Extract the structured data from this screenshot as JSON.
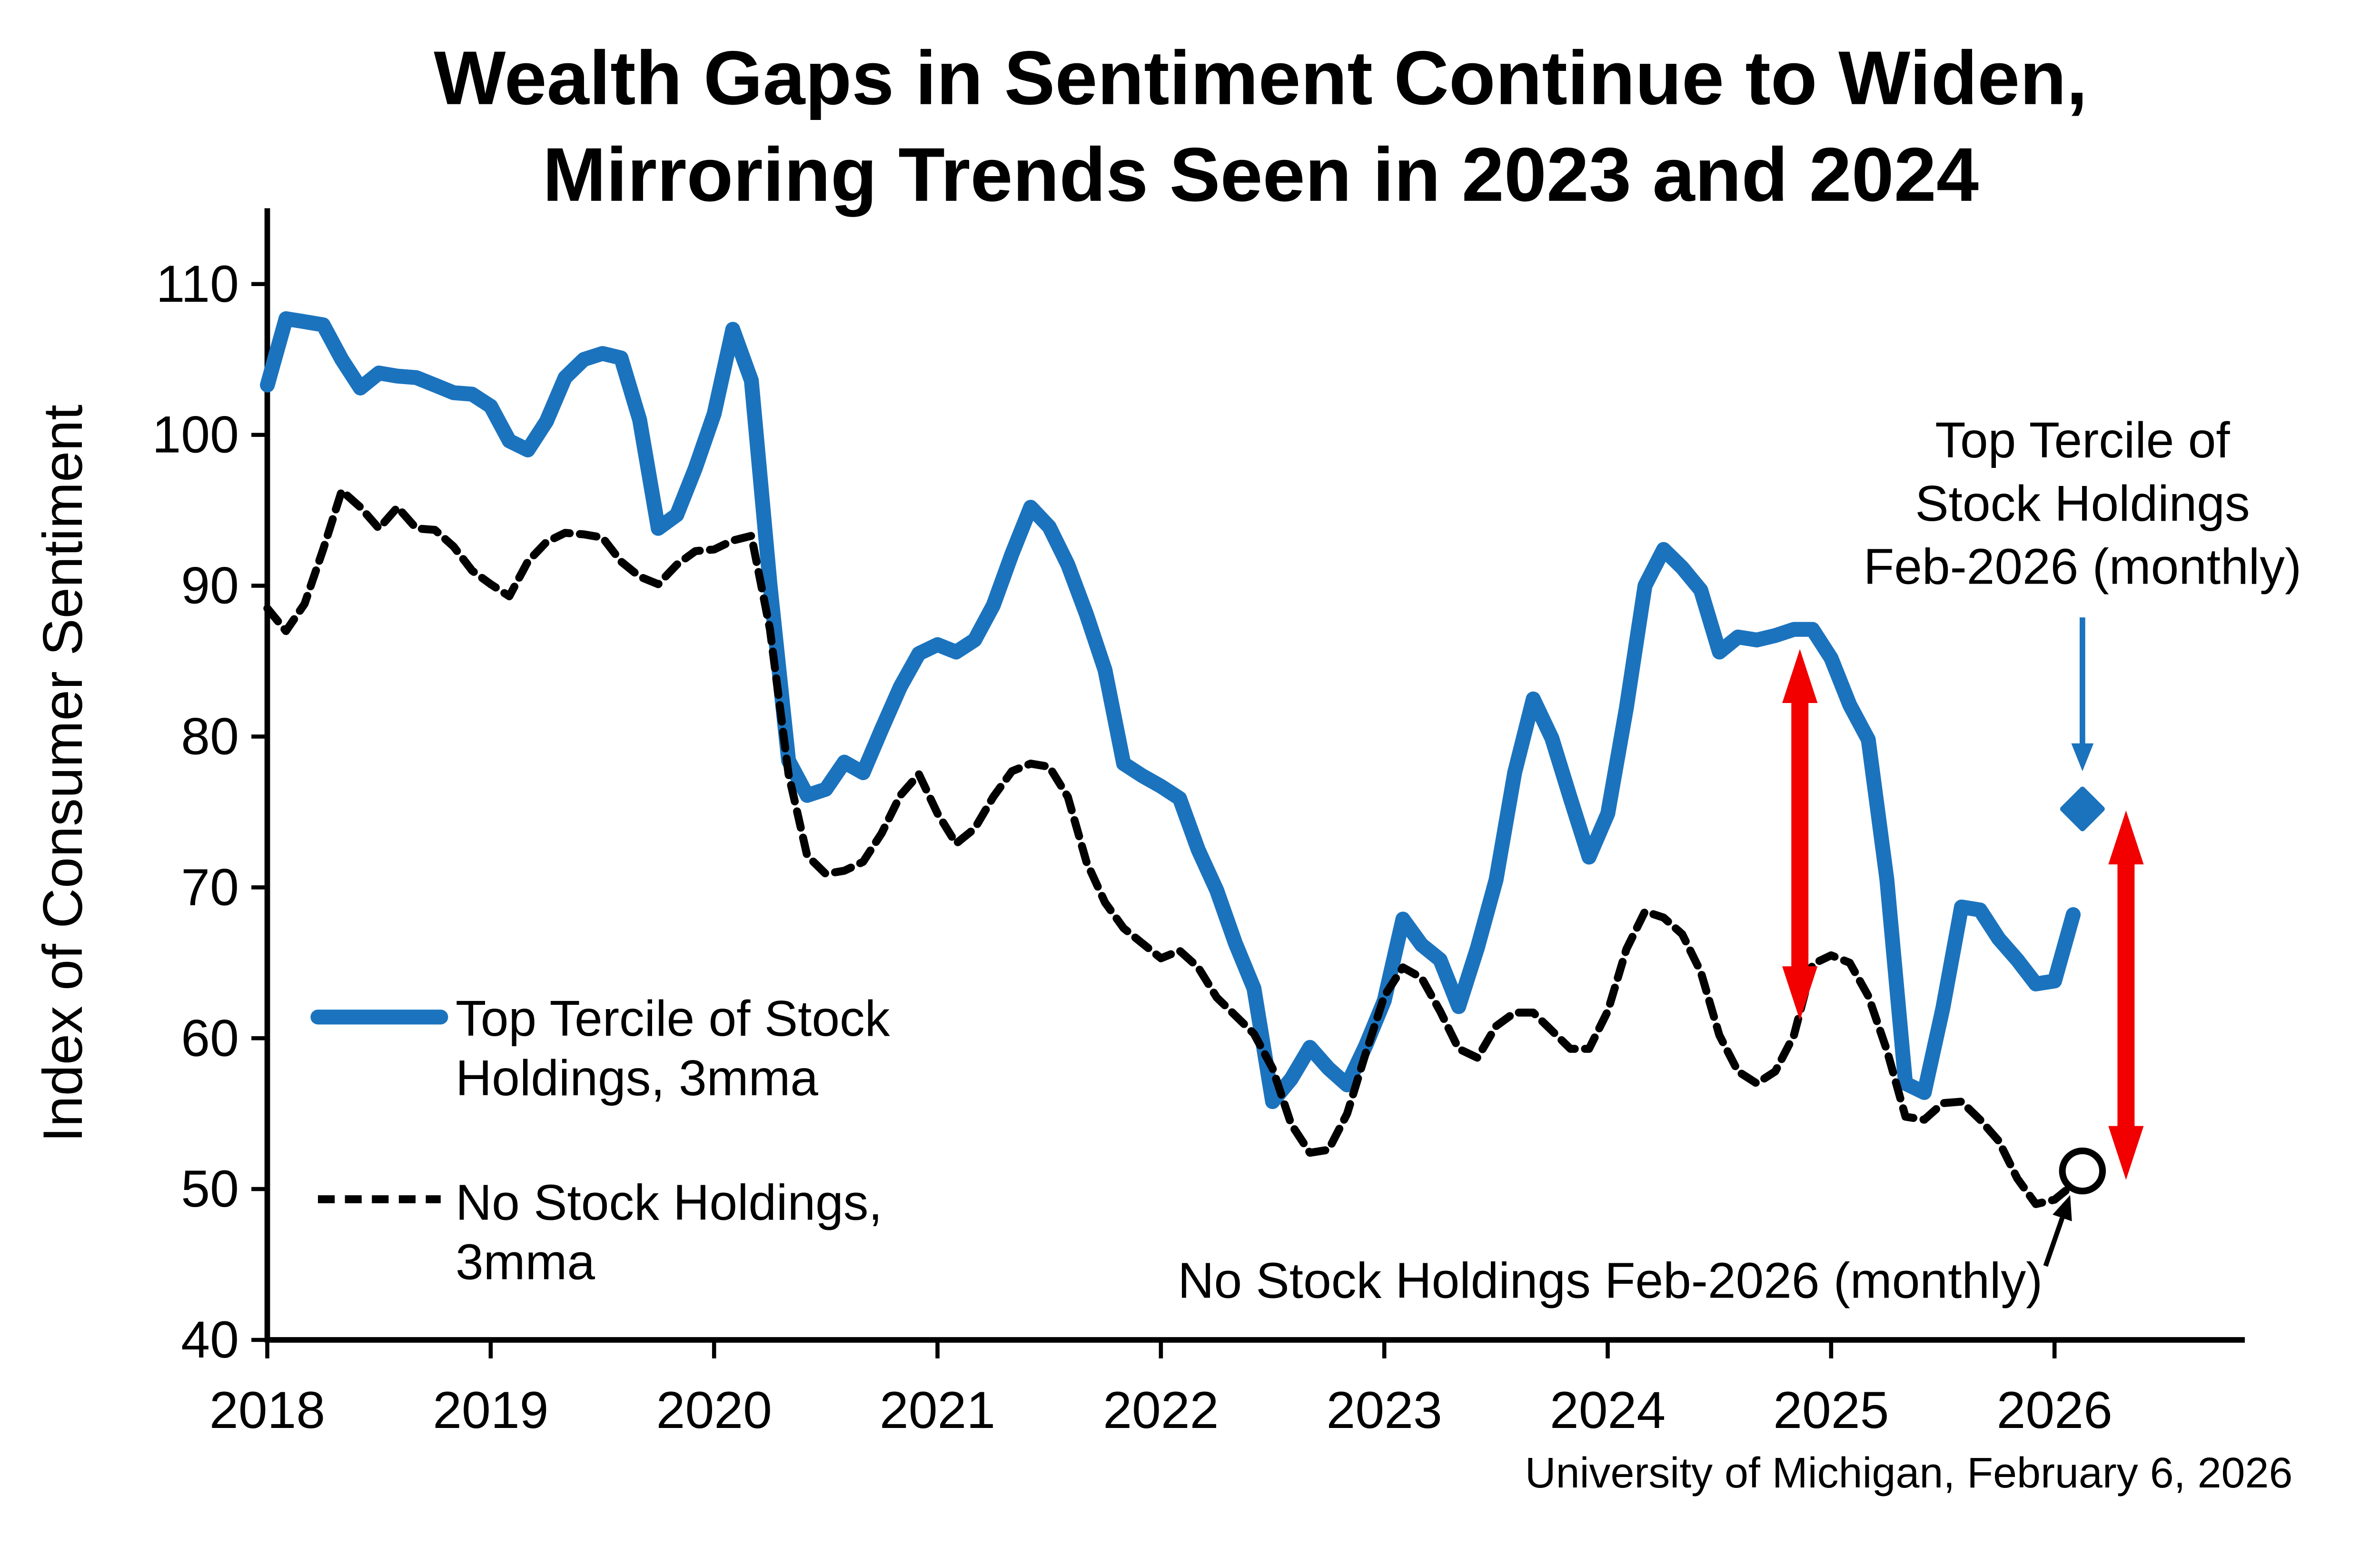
{
  "title": {
    "line1": "Wealth Gaps in Sentiment Continue to Widen,",
    "line2": "Mirroring Trends Seen in 2023 and 2024"
  },
  "y_axis": {
    "label": "Index of Consumer Sentiment",
    "ticks": [
      110,
      100,
      90,
      80,
      70,
      60,
      50,
      40
    ],
    "range": [
      40,
      110
    ]
  },
  "x_axis": {
    "tick_labels": [
      "2018",
      "2019",
      "2020",
      "2021",
      "2022",
      "2023",
      "2024",
      "2025",
      "2026"
    ]
  },
  "legend": {
    "items": [
      {
        "label_line1": "Top Tercile of Stock",
        "label_line2": "Holdings, 3mma",
        "style": "solid",
        "color": "#1b73be"
      },
      {
        "label_line1": "No Stock Holdings,",
        "label_line2": "3mma",
        "style": "dashed",
        "color": "#000000"
      }
    ]
  },
  "annotations": {
    "top_tercile_monthly": {
      "line1": "Top Tercile of",
      "line2": "Stock Holdings",
      "line3": "Feb-2026 (monthly)",
      "marker": "blue-diamond",
      "x": 2026.125,
      "value": 75.2
    },
    "no_stock_monthly": {
      "text": "No Stock Holdings Feb-2026 (monthly)",
      "marker": "open-circle",
      "x": 2026.125,
      "value": 51.2
    }
  },
  "source": "University of Michigan, February 6, 2026",
  "colors": {
    "blue": "#1b73be",
    "red": "#f20000",
    "black": "#000000",
    "background": "#ffffff"
  },
  "chart_data": {
    "type": "line",
    "frequency": "monthly",
    "x_start_month": "2018-01",
    "x_end_month": "2026-02",
    "x_axis_years": [
      2018,
      2019,
      2020,
      2021,
      2022,
      2023,
      2024,
      2025,
      2026
    ],
    "ylim": [
      40,
      110
    ],
    "grid": false,
    "series": [
      {
        "name": "Top Tercile of Stock Holdings, 3mma",
        "color": "#1b73be",
        "line": "solid",
        "values": [
          103.3,
          107.7,
          107.5,
          107.3,
          105.0,
          103.1,
          104.1,
          103.9,
          103.8,
          103.3,
          102.8,
          102.7,
          101.9,
          99.6,
          99.0,
          100.9,
          103.8,
          105.0,
          105.4,
          105.1,
          101.0,
          93.8,
          94.7,
          97.8,
          101.4,
          107.0,
          103.6,
          90.1,
          78.4,
          76.1,
          76.5,
          78.3,
          77.6,
          80.5,
          83.3,
          85.5,
          86.1,
          85.6,
          86.4,
          88.7,
          92.1,
          95.2,
          93.9,
          91.4,
          88.1,
          84.4,
          78.2,
          77.4,
          76.7,
          75.9,
          72.5,
          69.8,
          66.3,
          63.3,
          55.8,
          57.3,
          59.4,
          58.0,
          56.9,
          59.5,
          62.5,
          67.9,
          66.2,
          65.2,
          62.1,
          66.0,
          70.5,
          77.6,
          82.5,
          79.9,
          75.9,
          72.0,
          74.9,
          81.9,
          90.0,
          92.4,
          91.2,
          89.7,
          85.6,
          86.6,
          86.4,
          86.7,
          87.1,
          87.1,
          85.2,
          82.1,
          79.8,
          70.5,
          57.0,
          56.4,
          62.0,
          68.7,
          68.5,
          66.6,
          65.2,
          63.6,
          63.8,
          68.2
        ]
      },
      {
        "name": "No Stock Holdings, 3mma",
        "color": "#000000",
        "line": "dashed",
        "values": [
          88.5,
          87.0,
          88.8,
          92.4,
          96.3,
          95.2,
          93.8,
          95.2,
          93.8,
          93.7,
          92.6,
          91.0,
          90.1,
          89.3,
          91.6,
          92.9,
          93.5,
          93.4,
          93.2,
          91.6,
          90.6,
          90.1,
          91.4,
          92.3,
          92.4,
          93.0,
          93.3,
          87.1,
          77.5,
          72.1,
          70.9,
          71.1,
          71.7,
          73.6,
          76.1,
          77.5,
          74.9,
          72.9,
          73.9,
          76.0,
          77.7,
          78.2,
          78.0,
          76.0,
          71.7,
          69.0,
          67.3,
          66.3,
          65.3,
          65.8,
          64.7,
          62.7,
          61.5,
          60.3,
          58.0,
          54.3,
          52.4,
          52.6,
          55.0,
          59.0,
          62.8,
          64.7,
          64.0,
          61.8,
          59.3,
          58.7,
          60.8,
          61.7,
          61.7,
          60.5,
          59.3,
          59.3,
          61.8,
          65.9,
          68.4,
          68.0,
          66.9,
          64.4,
          60.2,
          57.8,
          57.0,
          57.8,
          60.2,
          64.9,
          65.5,
          65.0,
          62.8,
          59.2,
          54.8,
          54.6,
          55.7,
          55.8,
          54.6,
          53.2,
          50.7,
          49.0,
          49.3,
          50.3
        ]
      }
    ],
    "monthly_points": [
      {
        "name": "Top Tercile of Stock Holdings Feb-2026 (monthly)",
        "x": 2026.125,
        "value": 75.2,
        "marker": "diamond",
        "color": "#1b73be"
      },
      {
        "name": "No Stock Holdings Feb-2026 (monthly)",
        "x": 2026.125,
        "value": 51.2,
        "marker": "open-circle",
        "color": "#000000"
      }
    ],
    "gap_arrows": [
      {
        "x": 2024.86,
        "v_bottom": 61.2,
        "v_top": 85.8
      },
      {
        "x": 2026.32,
        "v_bottom": 50.6,
        "v_top": 75.1
      }
    ],
    "pointer_arrows": [
      {
        "type": "blue-vertical",
        "x": 2026.125,
        "from_value": 87.9,
        "to_value": 77.7
      },
      {
        "type": "black-diagonal",
        "from_x": 2025.96,
        "from_value": 44.9,
        "to_x": 2026.07,
        "to_value": 49.6
      }
    ]
  }
}
